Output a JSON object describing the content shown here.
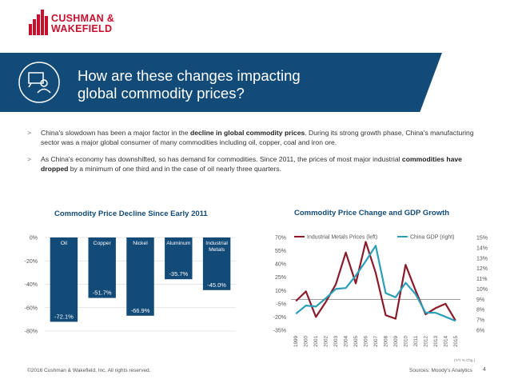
{
  "brand": {
    "line1": "CUSHMAN &",
    "line2": "WAKEFIELD",
    "color": "#c8102e"
  },
  "banner": {
    "title_line1": "How are these changes impacting",
    "title_line2": "global commodity prices?",
    "color": "#124a78",
    "icon": "presentation-person-icon"
  },
  "bullets": [
    {
      "marker": ">",
      "pre": "China's slowdown has been a major factor in the ",
      "bold": "decline in global commodity prices",
      "post": ". During its strong growth phase, China's manufacturing sector was a major global consumer of many commodities including oil, copper, coal and iron ore."
    },
    {
      "marker": ">",
      "pre": "As China's economy has downshifted, so has demand for commodities. Since 2011, the prices of most major industrial ",
      "bold": "commodities have dropped",
      "post": " by a minimum of one third and in the case of oil nearly three quarters."
    }
  ],
  "chart_data": [
    {
      "type": "bar",
      "title": "Commodity Price Decline Since Early 2011",
      "categories": [
        "Oil",
        "Copper",
        "Nickel",
        "Aluminum",
        "Industrial Metals"
      ],
      "values": [
        -72.1,
        -51.7,
        -66.9,
        -35.7,
        -45.0
      ],
      "value_labels": [
        "-72.1%",
        "-51.7%",
        "-66.9%",
        "-35.7%",
        "-45.0%"
      ],
      "ylim": [
        -80,
        0
      ],
      "yticks": [
        "0%",
        "-20%",
        "-40%",
        "-60%",
        "-80%"
      ],
      "ytick_values": [
        0,
        -20,
        -40,
        -60,
        -80
      ],
      "bar_color": "#124a78"
    },
    {
      "type": "line",
      "title": "Commodity Price Change and GDP Growth",
      "x": [
        "1999",
        "2000",
        "2001",
        "2002",
        "2003",
        "2004",
        "2005",
        "2006",
        "2007",
        "2008",
        "2009",
        "2010",
        "2011",
        "2012",
        "2013",
        "2014",
        "2015"
      ],
      "series": [
        {
          "name": "Industrial Metals Prices (left)",
          "axis": "left",
          "color": "#8b1a2b",
          "values": [
            -2,
            9,
            -20,
            -3,
            17,
            53,
            18,
            65,
            30,
            -18,
            -22,
            39,
            10,
            -17,
            -10,
            -5,
            -24
          ]
        },
        {
          "name": "China GDP (right)",
          "axis": "right",
          "color": "#2a9fb7",
          "values": [
            7.6,
            8.4,
            8.3,
            9.1,
            10.0,
            10.1,
            11.3,
            12.7,
            14.2,
            9.6,
            9.2,
            10.6,
            9.5,
            7.7,
            7.7,
            7.3,
            6.9
          ]
        }
      ],
      "ylim_left": [
        -35,
        70
      ],
      "yticks_left": [
        "70%",
        "55%",
        "40%",
        "25%",
        "10%",
        "-5%",
        "-20%",
        "-35%"
      ],
      "ytick_values_left": [
        70,
        55,
        40,
        25,
        10,
        -5,
        -20,
        -35
      ],
      "ylim_right": [
        6,
        15
      ],
      "yticks_right": [
        "15%",
        "14%",
        "13%",
        "12%",
        "11%",
        "10%",
        "9%",
        "8%",
        "7%",
        "6%"
      ],
      "ytick_values_right": [
        15,
        14,
        13,
        12,
        11,
        10,
        9,
        8,
        7,
        6
      ],
      "note": "(Y/Y % Chg.)"
    }
  ],
  "footer": {
    "copyright": "©2016 Cushman & Wakefield, Inc. All rights reserved.",
    "source": "Sources: Moody's Analytics",
    "page": "4"
  }
}
